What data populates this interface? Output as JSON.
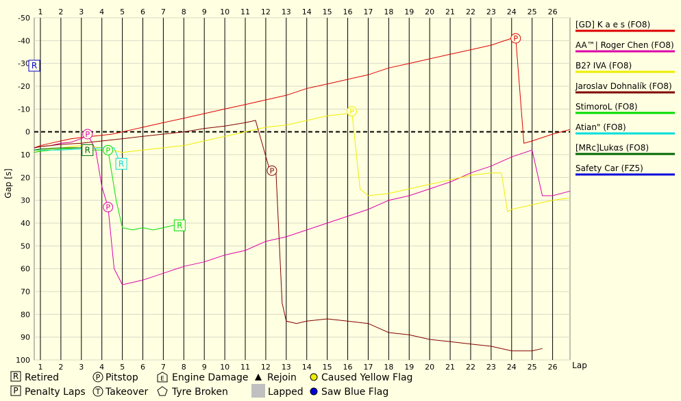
{
  "chart_data": {
    "type": "line",
    "xlabel": "Lap",
    "ylabel": "Gap [s]",
    "x_ticks": [
      1,
      2,
      3,
      4,
      5,
      6,
      7,
      8,
      9,
      10,
      11,
      12,
      13,
      14,
      15,
      16,
      17,
      18,
      19,
      20,
      21,
      22,
      23,
      24,
      25,
      26
    ],
    "x_range": [
      0.7,
      26.85
    ],
    "y_ticks": [
      -50,
      -40,
      -30,
      -20,
      -10,
      0,
      10,
      20,
      30,
      40,
      50,
      60,
      70,
      80,
      90,
      100
    ],
    "y_range": [
      -50,
      100
    ],
    "y_inverted": true,
    "grid": true,
    "legend_position": "right",
    "series": [
      {
        "name": "[GD]  K a e s  (FO8)",
        "color": "#DD0000",
        "points": [
          [
            0.7,
            7
          ],
          [
            1,
            6
          ],
          [
            1.5,
            5
          ],
          [
            2,
            4
          ],
          [
            2.5,
            3
          ],
          [
            3,
            2.5
          ],
          [
            3.5,
            2
          ],
          [
            4,
            1.5
          ],
          [
            4.5,
            1
          ],
          [
            5,
            0
          ],
          [
            5.5,
            -1
          ],
          [
            6,
            -2
          ],
          [
            7,
            -4
          ],
          [
            8,
            -6
          ],
          [
            9,
            -8
          ],
          [
            10,
            -10
          ],
          [
            11,
            -12
          ],
          [
            12,
            -14
          ],
          [
            13,
            -16
          ],
          [
            14,
            -19
          ],
          [
            15,
            -21
          ],
          [
            16,
            -23
          ],
          [
            17,
            -25
          ],
          [
            18,
            -28
          ],
          [
            19,
            -30
          ],
          [
            20,
            -32
          ],
          [
            21,
            -34
          ],
          [
            22,
            -36
          ],
          [
            23,
            -38
          ],
          [
            24,
            -41
          ],
          [
            24.2,
            -41
          ],
          [
            24.6,
            5
          ],
          [
            25,
            4
          ],
          [
            26,
            1
          ],
          [
            26.85,
            -1
          ]
        ],
        "events": [
          {
            "x": 24.2,
            "y": -41,
            "mark": "P"
          }
        ]
      },
      {
        "name": "AA™| Roger Chen (FO8)",
        "color": "#DD00AA",
        "points": [
          [
            0.7,
            7
          ],
          [
            1,
            6.5
          ],
          [
            1.5,
            6
          ],
          [
            2,
            5
          ],
          [
            2.5,
            4.5
          ],
          [
            3,
            3
          ],
          [
            3.3,
            1
          ],
          [
            3.7,
            8
          ],
          [
            4,
            24
          ],
          [
            4.3,
            33
          ],
          [
            4.6,
            60
          ],
          [
            5,
            67
          ],
          [
            5.5,
            66
          ],
          [
            6,
            65
          ],
          [
            7,
            62
          ],
          [
            8,
            59
          ],
          [
            9,
            57
          ],
          [
            10,
            54
          ],
          [
            11,
            52
          ],
          [
            12,
            48
          ],
          [
            13,
            46
          ],
          [
            14,
            43
          ],
          [
            15,
            40
          ],
          [
            16,
            37
          ],
          [
            17,
            34
          ],
          [
            18,
            30
          ],
          [
            19,
            28
          ],
          [
            20,
            25
          ],
          [
            21,
            22
          ],
          [
            22,
            18
          ],
          [
            23,
            15
          ],
          [
            24,
            11
          ],
          [
            25,
            8
          ],
          [
            25.5,
            28
          ],
          [
            26,
            28
          ],
          [
            26.85,
            26
          ]
        ],
        "events": [
          {
            "x": 3.3,
            "y": 1,
            "mark": "P"
          },
          {
            "x": 4.3,
            "y": 33,
            "mark": "P"
          }
        ]
      },
      {
        "name": "B2ʔ IVA (FO8)",
        "color": "#EEEE00",
        "points": [
          [
            0.7,
            9
          ],
          [
            1,
            8
          ],
          [
            2,
            7
          ],
          [
            3,
            6
          ],
          [
            4,
            7
          ],
          [
            4.5,
            8
          ],
          [
            5,
            9
          ],
          [
            6,
            8
          ],
          [
            7,
            7
          ],
          [
            8,
            6
          ],
          [
            9,
            4
          ],
          [
            10,
            2
          ],
          [
            11,
            0
          ],
          [
            12,
            -2
          ],
          [
            13,
            -3
          ],
          [
            14,
            -5
          ],
          [
            15,
            -7
          ],
          [
            16,
            -8
          ],
          [
            16.2,
            -9
          ],
          [
            16.6,
            25
          ],
          [
            17,
            28
          ],
          [
            18,
            27
          ],
          [
            19,
            25
          ],
          [
            20,
            23
          ],
          [
            21,
            21
          ],
          [
            22,
            19
          ],
          [
            23,
            18
          ],
          [
            23.5,
            18
          ],
          [
            23.8,
            35
          ],
          [
            24,
            34
          ],
          [
            25,
            32
          ],
          [
            26,
            30
          ],
          [
            26.85,
            29
          ]
        ],
        "events": [
          {
            "x": 16.2,
            "y": -9,
            "mark": "P"
          }
        ]
      },
      {
        "name": "Jaroslav Dohnalík (FO8)",
        "color": "#800000",
        "points": [
          [
            0.7,
            7
          ],
          [
            1,
            6.5
          ],
          [
            2,
            5.5
          ],
          [
            3,
            5
          ],
          [
            4,
            4
          ],
          [
            5,
            3
          ],
          [
            6,
            2
          ],
          [
            7,
            1
          ],
          [
            8,
            0
          ],
          [
            9,
            -1.5
          ],
          [
            10,
            -2.5
          ],
          [
            11,
            -4
          ],
          [
            11.5,
            -5
          ],
          [
            12.2,
            17
          ],
          [
            12.5,
            18
          ],
          [
            12.8,
            75
          ],
          [
            13,
            83
          ],
          [
            13.5,
            84
          ],
          [
            14,
            83
          ],
          [
            15,
            82
          ],
          [
            16,
            83
          ],
          [
            17,
            84
          ],
          [
            18,
            88
          ],
          [
            19,
            89
          ],
          [
            20,
            91
          ],
          [
            21,
            92
          ],
          [
            22,
            93
          ],
          [
            23,
            94
          ],
          [
            24,
            96
          ],
          [
            25,
            96
          ],
          [
            25.5,
            95
          ]
        ],
        "events": [
          {
            "x": 12.3,
            "y": 17,
            "mark": "P"
          }
        ]
      },
      {
        "name": "StimoroL (FO8)",
        "color": "#00DD00",
        "points": [
          [
            0.7,
            9
          ],
          [
            1,
            8.5
          ],
          [
            2,
            7.5
          ],
          [
            3,
            7
          ],
          [
            3.5,
            8
          ],
          [
            4,
            8
          ],
          [
            4.3,
            8
          ],
          [
            4.7,
            30
          ],
          [
            5,
            42
          ],
          [
            5.5,
            43
          ],
          [
            6,
            42
          ],
          [
            6.5,
            43
          ],
          [
            7,
            42
          ],
          [
            7.5,
            41
          ],
          [
            7.8,
            41
          ]
        ],
        "events": [
          {
            "x": 4.3,
            "y": 8,
            "mark": "P"
          },
          {
            "x": 7.8,
            "y": 41,
            "mark": "R"
          }
        ]
      },
      {
        "name": "Atian\" (FO8)",
        "color": "#00DDDD",
        "points": [
          [
            0.7,
            8
          ],
          [
            1,
            8
          ],
          [
            2,
            8
          ],
          [
            3,
            7.5
          ],
          [
            4,
            7
          ],
          [
            4.6,
            7
          ],
          [
            4.9,
            14
          ]
        ],
        "events": [
          {
            "x": 4.95,
            "y": 14,
            "mark": "R"
          }
        ]
      },
      {
        "name": "[MRc]Lukαs (FO8)",
        "color": "#006600",
        "points": [
          [
            0.7,
            8
          ],
          [
            1,
            7.5
          ],
          [
            2,
            7
          ],
          [
            2.5,
            7
          ],
          [
            3,
            7
          ],
          [
            3.3,
            8
          ]
        ],
        "events": [
          {
            "x": 3.3,
            "y": 8,
            "mark": "R"
          }
        ]
      },
      {
        "name": "Safety Car (FZ5)",
        "color": "#0000DD",
        "points": [],
        "events": [
          {
            "x": 0.7,
            "y": -29,
            "mark": "R"
          }
        ]
      }
    ]
  },
  "key": {
    "retired": "Retired",
    "penalty_laps": "Penalty Laps",
    "pitstop": "Pitstop",
    "takeover": "Takeover",
    "engine_damage": "Engine Damage",
    "tyre_broken": "Tyre Broken",
    "rejoin": "Rejoin",
    "lapped": "Lapped",
    "caused_yellow_flag": "Caused Yellow Flag",
    "saw_blue_flag": "Saw Blue Flag",
    "retired_glyph": "R",
    "penalty_glyph": "P",
    "pitstop_glyph": "P",
    "takeover_glyph": "T",
    "engine_glyph": "E"
  }
}
